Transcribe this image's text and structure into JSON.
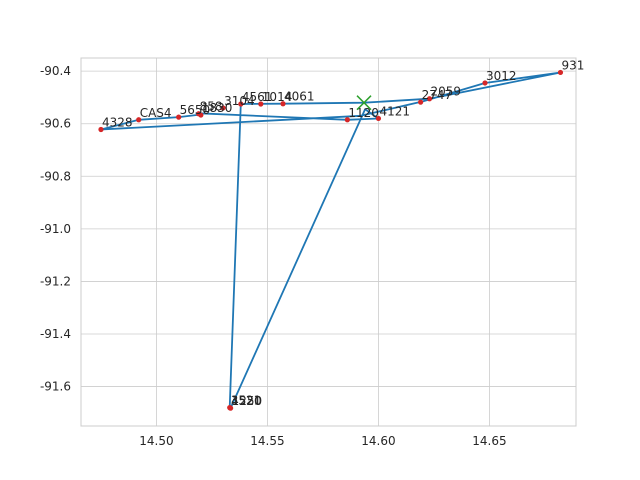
{
  "chart_data": {
    "type": "line",
    "title": "",
    "xlabel": "",
    "ylabel": "",
    "xlim": [
      14.466,
      14.689
    ],
    "ylim": [
      -91.75,
      -90.35
    ],
    "grid": true,
    "x_ticks": [
      14.5,
      14.55,
      14.6,
      14.65
    ],
    "x_tick_labels": [
      "14.50",
      "14.55",
      "14.60",
      "14.65"
    ],
    "y_ticks": [
      -90.4,
      -90.6,
      -90.8,
      -91.0,
      -91.2,
      -91.4,
      -91.6
    ],
    "y_tick_labels": [
      "-90.4",
      "-90.6",
      "-90.8",
      "-91.0",
      "-91.2",
      "-91.4",
      "-91.6"
    ],
    "line_color": "#1f77b4",
    "point_color": "#d62728",
    "marker_color": "#2ca02c",
    "path": [
      {
        "x": 14.5935,
        "y": -90.52
      },
      {
        "x": 14.557,
        "y": -90.524
      },
      {
        "x": 14.538,
        "y": -90.525
      },
      {
        "x": 14.533,
        "y": -91.68
      },
      {
        "x": 14.5335,
        "y": -91.68
      },
      {
        "x": 14.594,
        "y": -90.545
      },
      {
        "x": 14.6,
        "y": -90.58
      },
      {
        "x": 14.586,
        "y": -90.585
      },
      {
        "x": 14.518,
        "y": -90.56
      },
      {
        "x": 14.52,
        "y": -90.565
      },
      {
        "x": 14.51,
        "y": -90.575
      },
      {
        "x": 14.492,
        "y": -90.585
      },
      {
        "x": 14.475,
        "y": -90.622
      },
      {
        "x": 14.592,
        "y": -90.57
      },
      {
        "x": 14.62,
        "y": -90.515
      },
      {
        "x": 14.648,
        "y": -90.445
      },
      {
        "x": 14.682,
        "y": -90.405
      },
      {
        "x": 14.623,
        "y": -90.505
      },
      {
        "x": 14.5935,
        "y": -90.52
      }
    ],
    "points": [
      {
        "label": "931",
        "x": 14.682,
        "y": -90.405
      },
      {
        "label": "3012",
        "x": 14.648,
        "y": -90.445
      },
      {
        "label": "2059",
        "x": 14.623,
        "y": -90.505
      },
      {
        "label": "2747",
        "x": 14.619,
        "y": -90.518
      },
      {
        "label": "4061",
        "x": 14.557,
        "y": -90.524
      },
      {
        "label": "1014",
        "x": 14.547,
        "y": -90.525
      },
      {
        "label": "4561",
        "x": 14.538,
        "y": -90.525
      },
      {
        "label": "3104",
        "x": 14.53,
        "y": -90.54
      },
      {
        "label": "858",
        "x": 14.519,
        "y": -90.562
      },
      {
        "label": "1830",
        "x": 14.52,
        "y": -90.567
      },
      {
        "label": "5650",
        "x": 14.51,
        "y": -90.575
      },
      {
        "label": "CAS4",
        "x": 14.492,
        "y": -90.585
      },
      {
        "label": "4328",
        "x": 14.475,
        "y": -90.622
      },
      {
        "label": "1120",
        "x": 14.586,
        "y": -90.585
      },
      {
        "label": "4121",
        "x": 14.6,
        "y": -90.58
      },
      {
        "label": "3521",
        "x": 14.533,
        "y": -91.68
      },
      {
        "label": "4520",
        "x": 14.5332,
        "y": -91.681
      },
      {
        "label": "1250",
        "x": 14.5334,
        "y": -91.682
      }
    ],
    "marker": {
      "symbol": "x",
      "x": 14.5935,
      "y": -90.52
    }
  }
}
